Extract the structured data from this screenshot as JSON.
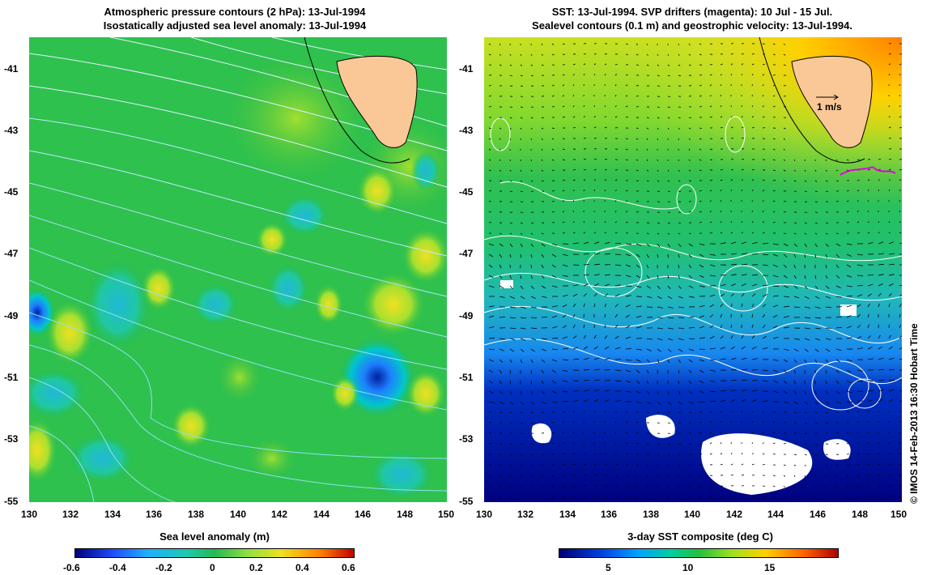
{
  "left_panel": {
    "title_line1": "Atmospheric pressure contours (2 hPa): 13-Jul-1994",
    "title_line2": "Isostatically adjusted sea level anomaly: 13-Jul-1994",
    "colorbar_label": "Sea level anomaly (m)",
    "colorbar_ticks": [
      "-0.6",
      "-0.4",
      "-0.2",
      "0",
      "0.2",
      "0.4",
      "0.6"
    ]
  },
  "right_panel": {
    "title_line1": "SST: 13-Jul-1994. SVP drifters (magenta): 10 Jul - 15 Jul.",
    "title_line2": "Sealevel contours (0.1 m) and geostrophic velocity: 13-Jul-1994.",
    "colorbar_label": "3-day SST composite (deg C)",
    "colorbar_ticks": [
      "5",
      "10",
      "15"
    ],
    "velocity_scale_label": "1 m/s"
  },
  "axes": {
    "x_ticks": [
      "130",
      "132",
      "134",
      "136",
      "138",
      "140",
      "142",
      "144",
      "146",
      "148",
      "150"
    ],
    "y_ticks": [
      "-41",
      "-43",
      "-45",
      "-47",
      "-49",
      "-51",
      "-53",
      "-55"
    ],
    "lon_range": [
      130,
      150
    ],
    "lat_range": [
      -55,
      -40
    ]
  },
  "credit": "© IMOS 14-Feb-2013 16:30 Hobart Time",
  "colors": {
    "land": "#f9c896",
    "sla_scale": [
      "#000080",
      "#1e90ff",
      "#00c8c8",
      "#22bb55",
      "#80e040",
      "#f0e020",
      "#ff8000",
      "#c00000"
    ],
    "sst_scale": [
      "#000070",
      "#0040e0",
      "#00a0ff",
      "#00d0a0",
      "#20c040",
      "#a0e020",
      "#ffd000",
      "#ff6000",
      "#b00000"
    ]
  }
}
